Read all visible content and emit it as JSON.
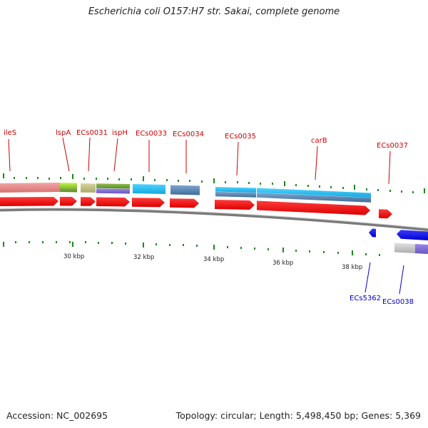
{
  "title": "Escherichia coli O157:H7 str. Sakai, complete genome",
  "footer": {
    "accession": "Accession: NC_002695",
    "summary": "Topology: circular; Length: 5,498,450 bp; Genes: 5,369"
  },
  "colors": {
    "forward_label": "#cc0000",
    "reverse_label": "#0000cc",
    "forward_cds": "#ff0000",
    "reverse_cds": "#0000ee",
    "backbone": "#7a7a7a",
    "tick": "#1a8a1a"
  },
  "scale_labels": [
    {
      "text": "30 kbp",
      "kbp": 30
    },
    {
      "text": "32 kbp",
      "kbp": 32
    },
    {
      "text": "34 kbp",
      "kbp": 34
    },
    {
      "text": "36 kbp",
      "kbp": 36
    },
    {
      "text": "38 kbp",
      "kbp": 38
    }
  ],
  "forward_genes": [
    "ileS",
    "lspA",
    "ECs0031",
    "ispH",
    "ECs0033",
    "ECs0034",
    "ECs0035",
    "carB",
    "ECs0037"
  ],
  "reverse_genes": [
    "ECs5362",
    "ECs0038"
  ]
}
